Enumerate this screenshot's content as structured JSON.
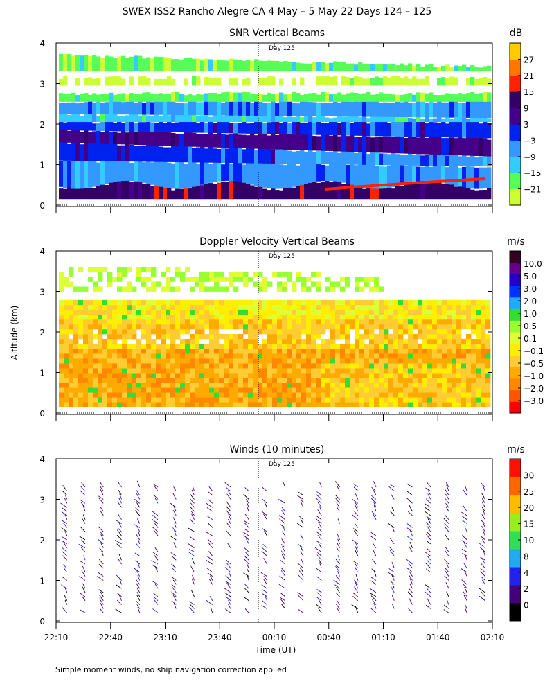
{
  "figure": {
    "title": "SWEX ISS2 Rancho Alegre CA    4 May –  5 May 22 Days 124 – 125",
    "ylabel": "Altitude (km)",
    "xlabel": "Time (UT)",
    "footnote": "Simple moment winds, no ship navigation correction applied",
    "day_marker": "Day 125"
  },
  "chart_data": [
    {
      "type": "heatmap",
      "title": "SNR Vertical Beams",
      "ylim": [
        0,
        4
      ],
      "yticks": [
        "0",
        "1",
        "2",
        "3",
        "4"
      ],
      "x_range": [
        "22:10",
        "02:10"
      ],
      "day_marker_time": "23:56",
      "data_altitude_range_km": [
        0.15,
        3.7
      ],
      "colorbar": {
        "unit": "dB",
        "labels": [
          "27",
          "21",
          "15",
          "9",
          "3",
          "−3",
          "−9",
          "−15",
          "−21"
        ],
        "colors": [
          "#ccff33",
          "#55ff55",
          "#33ccff",
          "#3399ff",
          "#0022ee",
          "#440088",
          "#330066",
          "#ff2200",
          "#ff7700",
          "#ffcc00"
        ]
      }
    },
    {
      "type": "heatmap",
      "title": "Doppler Velocity Vertical Beams",
      "ylim": [
        0,
        4
      ],
      "yticks": [
        "0",
        "1",
        "2",
        "3",
        "4"
      ],
      "x_range": [
        "22:10",
        "02:10"
      ],
      "day_marker_time": "23:56",
      "data_altitude_range_km": [
        0.15,
        3.7
      ],
      "colorbar": {
        "unit": "m/s",
        "labels": [
          "10.0",
          "5.0",
          "3.0",
          "2.0",
          "1.0",
          "0.5",
          "0.1",
          "−0.1",
          "−0.5",
          "−1.0",
          "−2.0",
          "−3.0"
        ],
        "colors": [
          "#ff0000",
          "#ff5500",
          "#ff8800",
          "#ffaa00",
          "#ffcc33",
          "#ffee00",
          "#ddff33",
          "#99ff33",
          "#33dd33",
          "#22aaff",
          "#0033ff",
          "#2200cc",
          "#660088",
          "#330022"
        ]
      }
    },
    {
      "type": "scatter",
      "title": "Winds (10 minutes)",
      "ylim": [
        0,
        4
      ],
      "yticks": [
        "0",
        "1",
        "2",
        "3",
        "4"
      ],
      "xticks": [
        "22:10",
        "22:40",
        "23:10",
        "23:40",
        "00:10",
        "00:40",
        "01:10",
        "01:40",
        "02:10"
      ],
      "x_range": [
        "22:10",
        "02:10"
      ],
      "day_marker_time": "23:56",
      "profile_interval_min": 10,
      "data_altitude_range_km": [
        0.15,
        3.5
      ],
      "colorbar": {
        "unit": "m/s",
        "labels": [
          "30",
          "25",
          "20",
          "15",
          "10",
          "8",
          "4",
          "2",
          "0"
        ],
        "colors": [
          "#000000",
          "#440077",
          "#2222ee",
          "#22aaee",
          "#33dd55",
          "#99ee22",
          "#ffbb00",
          "#ff6600",
          "#ff1100"
        ]
      }
    }
  ]
}
